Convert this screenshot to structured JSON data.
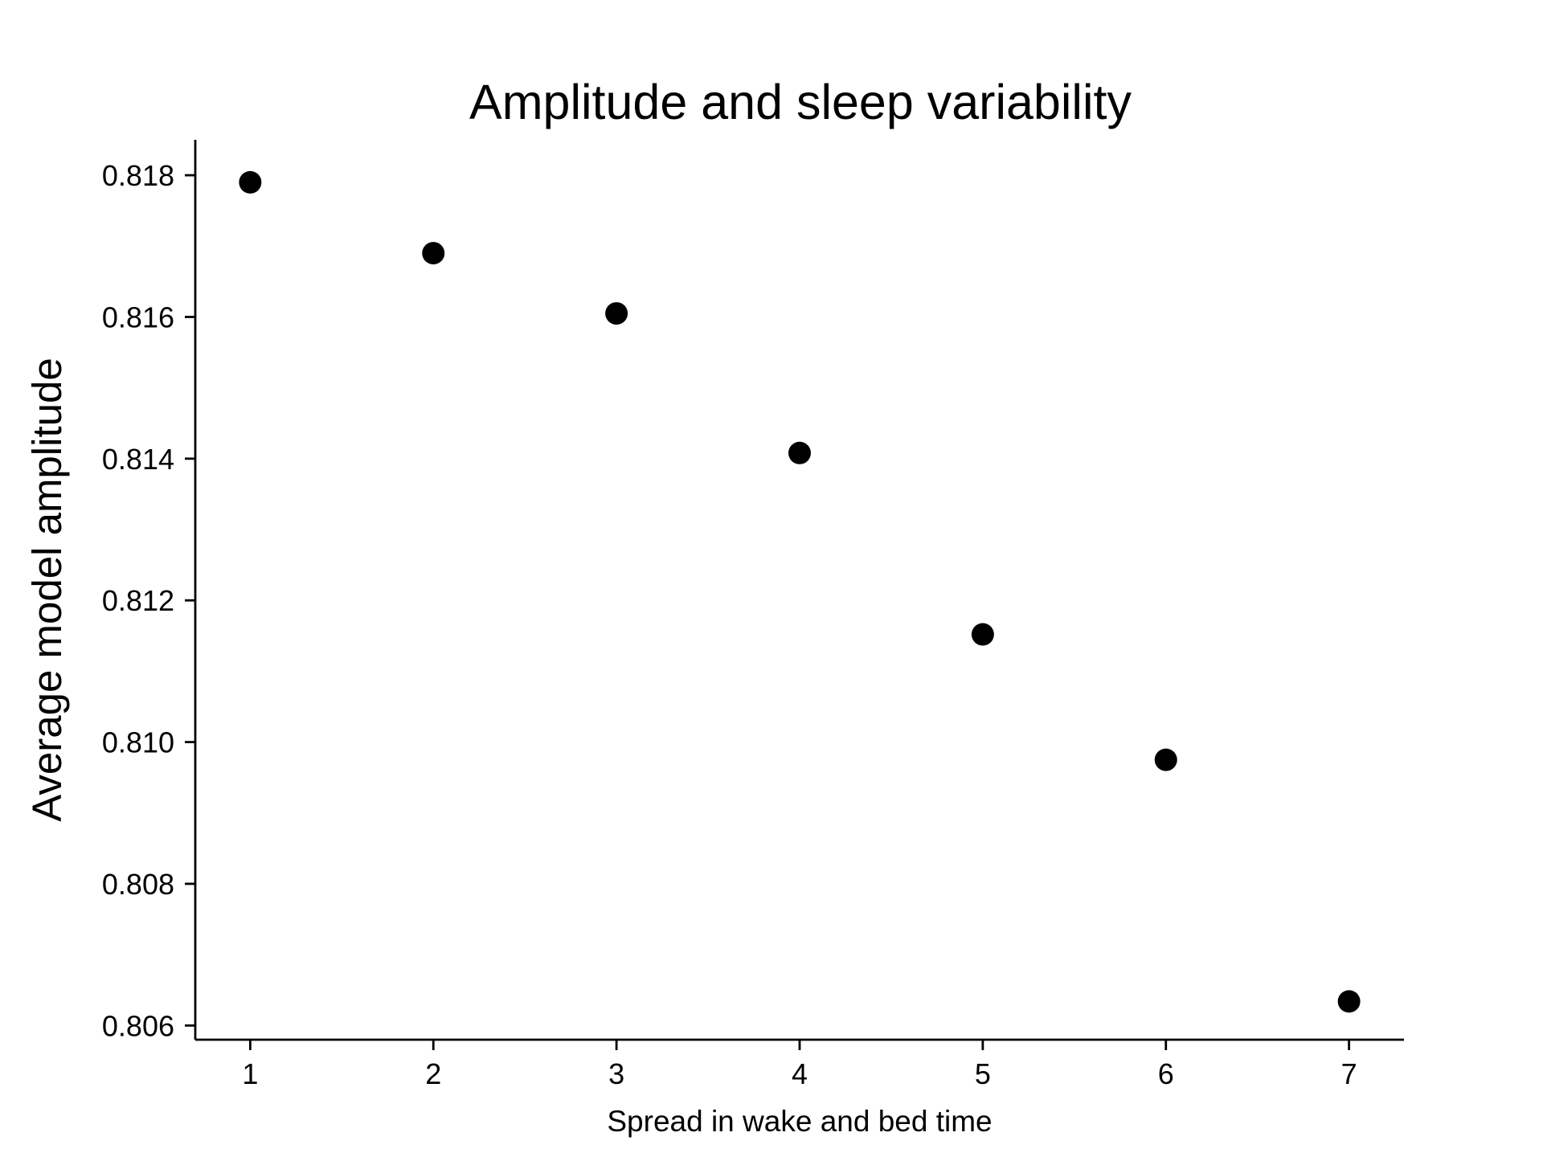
{
  "chart_data": {
    "type": "scatter",
    "title": "Amplitude and sleep variability",
    "xlabel": "Spread in wake and bed time",
    "ylabel": "Average model amplitude",
    "x": [
      1,
      2,
      3,
      4,
      5,
      6,
      7
    ],
    "y": [
      0.8179,
      0.8169,
      0.81605,
      0.81408,
      0.81152,
      0.80975,
      0.80634
    ],
    "xticks": [
      1,
      2,
      3,
      4,
      5,
      6,
      7
    ],
    "xtick_labels": [
      "1",
      "2",
      "3",
      "4",
      "5",
      "6",
      "7"
    ],
    "yticks": [
      0.806,
      0.808,
      0.81,
      0.812,
      0.814,
      0.816,
      0.818
    ],
    "ytick_labels": [
      "0.806",
      "0.808",
      "0.810",
      "0.812",
      "0.814",
      "0.816",
      "0.818"
    ],
    "xlim": [
      0.7,
      7.3
    ],
    "ylim": [
      0.8058,
      0.8185
    ],
    "grid": false,
    "legend": "none",
    "marker_color": "#000000"
  }
}
